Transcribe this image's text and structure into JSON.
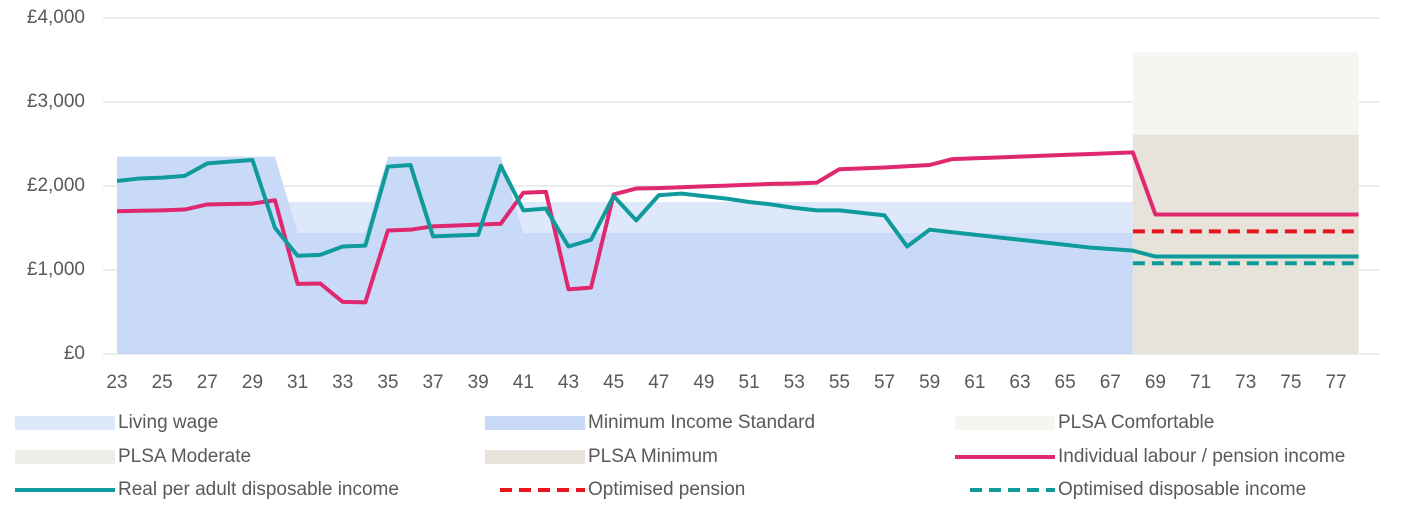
{
  "chart_data": {
    "type": "line",
    "x": [
      23,
      24,
      25,
      26,
      27,
      28,
      29,
      30,
      31,
      32,
      33,
      34,
      35,
      36,
      37,
      38,
      39,
      40,
      41,
      42,
      43,
      44,
      45,
      46,
      47,
      48,
      49,
      50,
      51,
      52,
      53,
      54,
      55,
      56,
      57,
      58,
      59,
      60,
      61,
      62,
      63,
      64,
      65,
      66,
      67,
      68,
      69,
      70,
      71,
      72,
      73,
      74,
      75,
      76,
      77,
      78
    ],
    "xlim": [
      23,
      78
    ],
    "xticks": [
      23,
      25,
      27,
      29,
      31,
      33,
      35,
      37,
      39,
      41,
      43,
      45,
      47,
      49,
      51,
      53,
      55,
      57,
      59,
      61,
      63,
      65,
      67,
      69,
      71,
      73,
      75,
      77
    ],
    "ylim": [
      0,
      4000
    ],
    "yticks": [
      {
        "value": 0,
        "label": "£0"
      },
      {
        "value": 1000,
        "label": "£1,000"
      },
      {
        "value": 2000,
        "label": "£2,000"
      },
      {
        "value": 3000,
        "label": "£3,000"
      },
      {
        "value": 4000,
        "label": "£4,000"
      }
    ],
    "grid": true,
    "series": [
      {
        "name": "Living wage",
        "style": "area",
        "color": "#dde8fb",
        "values": [
          1810,
          1810,
          1810,
          1810,
          1810,
          1810,
          1810,
          1810,
          1810,
          1810,
          1810,
          1810,
          1810,
          1810,
          1810,
          1810,
          1810,
          1810,
          1810,
          1810,
          1810,
          1810,
          1810,
          1810,
          1810,
          1810,
          1810,
          1810,
          1810,
          1810,
          1810,
          1810,
          1810,
          1810,
          1810,
          1810,
          1810,
          1810,
          1810,
          1810,
          1810,
          1810,
          1810,
          1810,
          1810,
          1810,
          null,
          null,
          null,
          null,
          null,
          null,
          null,
          null,
          null,
          null
        ]
      },
      {
        "name": "Minimum Income Standard",
        "style": "area",
        "color": "#c9daf8",
        "values": [
          2350,
          2350,
          2350,
          2350,
          2350,
          2350,
          2350,
          2350,
          1440,
          1440,
          1440,
          1440,
          2350,
          2350,
          2350,
          2350,
          2350,
          2350,
          1440,
          1440,
          1440,
          1440,
          1440,
          1440,
          1440,
          1440,
          1440,
          1440,
          1440,
          1440,
          1440,
          1440,
          1440,
          1440,
          1440,
          1440,
          1440,
          1440,
          1440,
          1440,
          1440,
          1440,
          1440,
          1440,
          1440,
          1440,
          null,
          null,
          null,
          null,
          null,
          null,
          null,
          null,
          null,
          null
        ]
      },
      {
        "name": "PLSA Comfortable",
        "style": "area",
        "color": "#f6f5f2",
        "values": [
          null,
          null,
          null,
          null,
          null,
          null,
          null,
          null,
          null,
          null,
          null,
          null,
          null,
          null,
          null,
          null,
          null,
          null,
          null,
          null,
          null,
          null,
          null,
          null,
          null,
          null,
          null,
          null,
          null,
          null,
          null,
          null,
          null,
          null,
          null,
          null,
          null,
          null,
          null,
          null,
          null,
          null,
          null,
          null,
          null,
          3590,
          3590,
          3590,
          3590,
          3590,
          3590,
          3590,
          3590,
          3590,
          3590,
          3590
        ]
      },
      {
        "name": "PLSA Moderate",
        "style": "area",
        "color": "#efede8",
        "values": [
          null,
          null,
          null,
          null,
          null,
          null,
          null,
          null,
          null,
          null,
          null,
          null,
          null,
          null,
          null,
          null,
          null,
          null,
          null,
          null,
          null,
          null,
          null,
          null,
          null,
          null,
          null,
          null,
          null,
          null,
          null,
          null,
          null,
          null,
          null,
          null,
          null,
          null,
          null,
          null,
          null,
          null,
          null,
          null,
          null,
          2610,
          2610,
          2610,
          2610,
          2610,
          2610,
          2610,
          2610,
          2610,
          2610,
          2610
        ]
      },
      {
        "name": "PLSA Minimum",
        "style": "area",
        "color": "#e7e3da",
        "values": [
          null,
          null,
          null,
          null,
          null,
          null,
          null,
          null,
          null,
          null,
          null,
          null,
          null,
          null,
          null,
          null,
          null,
          null,
          null,
          null,
          null,
          null,
          null,
          null,
          null,
          null,
          null,
          null,
          null,
          null,
          null,
          null,
          null,
          null,
          null,
          null,
          null,
          null,
          null,
          null,
          null,
          null,
          null,
          null,
          null,
          2610,
          2610,
          2610,
          2610,
          2610,
          2610,
          2610,
          2610,
          2610,
          2610,
          2610
        ]
      },
      {
        "name": "Individual labour / pension income",
        "style": "line",
        "color": "#e0286f",
        "values": [
          1700,
          1705,
          1710,
          1720,
          1780,
          1785,
          1790,
          1830,
          835,
          840,
          620,
          615,
          1470,
          1480,
          1520,
          1530,
          1540,
          1550,
          1920,
          1930,
          770,
          790,
          1900,
          1970,
          1975,
          1985,
          1995,
          2005,
          2015,
          2025,
          2030,
          2040,
          2200,
          2210,
          2220,
          2235,
          2250,
          2320,
          2330,
          2340,
          2350,
          2360,
          2370,
          2380,
          2390,
          2400,
          1660,
          1660,
          1660,
          1660,
          1660,
          1660,
          1660,
          1660,
          1660,
          1660
        ]
      },
      {
        "name": "Real per adult disposable income",
        "style": "line",
        "color": "#0f9b9b",
        "values": [
          2060,
          2090,
          2100,
          2120,
          2270,
          2290,
          2310,
          1500,
          1170,
          1180,
          1280,
          1290,
          2230,
          2250,
          1400,
          1410,
          1420,
          2240,
          1710,
          1730,
          1280,
          1360,
          1880,
          1590,
          1890,
          1910,
          1880,
          1850,
          1810,
          1780,
          1740,
          1710,
          1710,
          1680,
          1650,
          1280,
          1480,
          1450,
          1420,
          1390,
          1360,
          1330,
          1300,
          1270,
          1250,
          1230,
          1160,
          1160,
          1160,
          1160,
          1160,
          1160,
          1160,
          1160,
          1160,
          1160
        ]
      },
      {
        "name": "Optimised pension",
        "style": "dashed",
        "color": "#e8141c",
        "values": [
          null,
          null,
          null,
          null,
          null,
          null,
          null,
          null,
          null,
          null,
          null,
          null,
          null,
          null,
          null,
          null,
          null,
          null,
          null,
          null,
          null,
          null,
          null,
          null,
          null,
          null,
          null,
          null,
          null,
          null,
          null,
          null,
          null,
          null,
          null,
          null,
          null,
          null,
          null,
          null,
          null,
          null,
          null,
          null,
          null,
          1460,
          1460,
          1460,
          1460,
          1460,
          1460,
          1460,
          1460,
          1460,
          1460,
          1460
        ]
      },
      {
        "name": "Optimised disposable income",
        "style": "dashed",
        "color": "#0f9b9b",
        "values": [
          null,
          null,
          null,
          null,
          null,
          null,
          null,
          null,
          null,
          null,
          null,
          null,
          null,
          null,
          null,
          null,
          null,
          null,
          null,
          null,
          null,
          null,
          null,
          null,
          null,
          null,
          null,
          null,
          null,
          null,
          null,
          null,
          null,
          null,
          null,
          null,
          null,
          null,
          null,
          null,
          null,
          null,
          null,
          null,
          null,
          1080,
          1080,
          1080,
          1080,
          1080,
          1080,
          1080,
          1080,
          1080,
          1080,
          1080
        ]
      }
    ]
  }
}
